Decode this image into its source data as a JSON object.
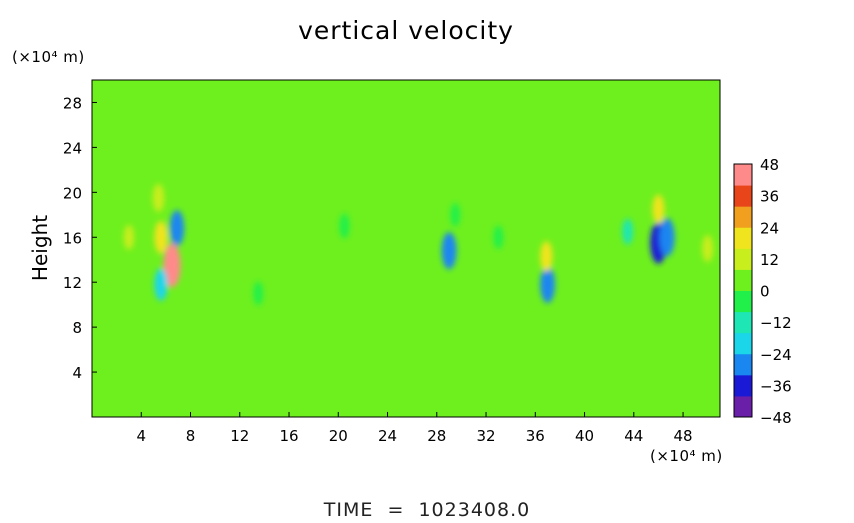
{
  "chart_data": {
    "type": "heatmap",
    "title": "vertical velocity",
    "ylabel": "Height",
    "x_unit_label": "(×10⁴ m)",
    "y_unit_label": "(×10⁴ m)",
    "footer": "TIME  =  1023408.0",
    "xlim": [
      0,
      51
    ],
    "ylim": [
      0,
      30
    ],
    "x_ticks": [
      4,
      8,
      12,
      16,
      20,
      24,
      28,
      32,
      36,
      40,
      44,
      48
    ],
    "y_ticks": [
      4,
      8,
      12,
      16,
      20,
      24,
      28
    ],
    "colorbar": {
      "vmin": -48,
      "vmax": 48,
      "ticks": [
        48,
        36,
        24,
        12,
        0,
        -12,
        -24,
        -36,
        -48
      ],
      "tick_labels": [
        "48",
        "36",
        "24",
        "12",
        "0",
        "−12",
        "−24",
        "−36",
        "−48"
      ],
      "colors": [
        "#6a1fa8",
        "#1a1ad6",
        "#1a86f0",
        "#1ad6e8",
        "#1ee6b4",
        "#22f04a",
        "#6ef01e",
        "#c8ee1e",
        "#f0e41e",
        "#f0a01e",
        "#e8461a",
        "#ff8a8a"
      ]
    },
    "background_value": 0,
    "features": [
      {
        "x": 6.5,
        "y": 13.5,
        "value": 42
      },
      {
        "x": 5.6,
        "y": 16.0,
        "value": 22
      },
      {
        "x": 5.4,
        "y": 19.5,
        "value": 14
      },
      {
        "x": 6.9,
        "y": 16.8,
        "value": -28
      },
      {
        "x": 5.6,
        "y": 11.8,
        "value": -22
      },
      {
        "x": 3.0,
        "y": 16.0,
        "value": 8
      },
      {
        "x": 29.0,
        "y": 14.8,
        "value": -30
      },
      {
        "x": 29.5,
        "y": 18.0,
        "value": -6
      },
      {
        "x": 37.0,
        "y": 11.8,
        "value": -30
      },
      {
        "x": 36.9,
        "y": 14.3,
        "value": 18
      },
      {
        "x": 46.0,
        "y": 15.5,
        "value": -38
      },
      {
        "x": 46.7,
        "y": 16.0,
        "value": -32
      },
      {
        "x": 46.0,
        "y": 18.5,
        "value": 16
      },
      {
        "x": 50.0,
        "y": 15.0,
        "value": 12
      },
      {
        "x": 43.5,
        "y": 16.5,
        "value": -10
      },
      {
        "x": 20.5,
        "y": 17.0,
        "value": -8
      },
      {
        "x": 13.5,
        "y": 11.0,
        "value": -6
      },
      {
        "x": 33.0,
        "y": 16.0,
        "value": -6
      }
    ]
  }
}
